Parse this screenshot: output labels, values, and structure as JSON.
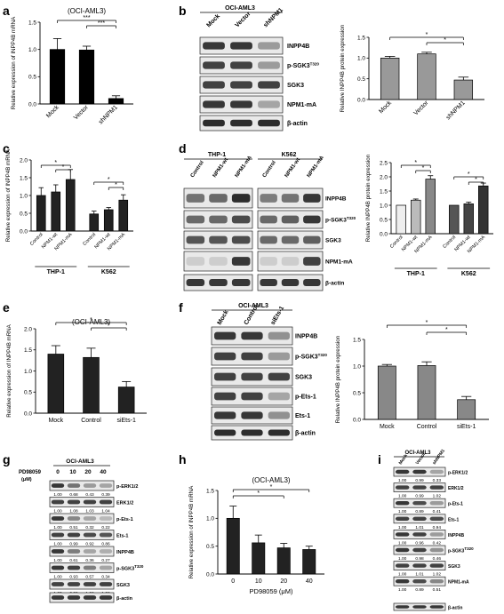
{
  "panels": {
    "a": {
      "letter": "a",
      "chart_data": {
        "type": "bar",
        "title": "(OCI-AML3)",
        "ylabel": "Relative expression of INPP4B mRNA",
        "categories": [
          "Mock",
          "Vector",
          "shNPM1"
        ],
        "values": [
          1.0,
          0.99,
          0.1
        ],
        "errors": [
          0.2,
          0.07,
          0.05
        ],
        "ylim": [
          0,
          1.5
        ],
        "yticks": [
          "0.0",
          "0.5",
          "1.0",
          "1.5"
        ],
        "sig": [
          "***",
          "***"
        ],
        "color": "#000000"
      }
    },
    "b": {
      "letter": "b",
      "cell_line": "OCI-AML3",
      "lanes": [
        "Mock",
        "Vector",
        "shNPM1"
      ],
      "proteins": [
        "INPP4B",
        "p-SGK3",
        "SGK3",
        "NPM1-mA",
        "β-actin"
      ],
      "phospho_site": "T320",
      "chart_data": {
        "type": "bar",
        "ylabel": "Relative INPP4B protein expression",
        "categories": [
          "Mock",
          "Vector",
          "shNPM1"
        ],
        "values": [
          1.0,
          1.1,
          0.47
        ],
        "errors": [
          0.04,
          0.04,
          0.07
        ],
        "ylim": [
          0,
          1.5
        ],
        "yticks": [
          "0.0",
          "0.5",
          "1.0",
          "1.5"
        ],
        "sig": [
          "*",
          "*"
        ],
        "color": "#999999"
      }
    },
    "c": {
      "letter": "c",
      "chart_data": {
        "type": "bar",
        "ylabel": "Relative expression of INPP4B mRNA",
        "categories": [
          "Control",
          "NPM1-wt",
          "NPM1-mA",
          "Control",
          "NPM1-wt",
          "NPM1-mA"
        ],
        "groups": [
          "THP-1",
          "K562"
        ],
        "values": [
          1.0,
          1.1,
          1.45,
          0.48,
          0.6,
          0.87
        ],
        "errors": [
          0.22,
          0.2,
          0.28,
          0.08,
          0.06,
          0.15
        ],
        "ylim": [
          0,
          2.0
        ],
        "yticks": [
          "0.0",
          "0.5",
          "1.0",
          "1.5",
          "2.0"
        ],
        "sig": [
          "*",
          "*",
          "*",
          "*"
        ],
        "color": "#222222"
      }
    },
    "d": {
      "letter": "d",
      "cell_lines": [
        "THP-1",
        "K562"
      ],
      "lanes": [
        "Control",
        "NPM1-wt",
        "NPM1-mA"
      ],
      "proteins": [
        "INPP4B",
        "p-SGK3",
        "SGK3",
        "NPM1-mA",
        "β-actin"
      ],
      "phospho_site": "T320",
      "chart_data": {
        "type": "bar",
        "ylabel": "Relative INPP4B protein expression",
        "categories": [
          "Control",
          "NPM1-wt",
          "NPM1-mA",
          "Control",
          "NPM1-wt",
          "NPM1-mA"
        ],
        "groups": [
          "THP-1",
          "K562"
        ],
        "values": [
          1.0,
          1.18,
          1.92,
          1.0,
          1.05,
          1.68
        ],
        "errors": [
          0.0,
          0.04,
          0.12,
          0.0,
          0.06,
          0.1
        ],
        "ylim": [
          0,
          2.5
        ],
        "yticks": [
          "0.0",
          "0.5",
          "1.0",
          "1.5",
          "2.0",
          "2.5"
        ],
        "sig": [
          "*",
          "*",
          "*",
          "*"
        ],
        "colors": [
          "#eeeeee",
          "#bbbbbb",
          "#888888",
          "#555555",
          "#444444",
          "#333333"
        ]
      }
    },
    "e": {
      "letter": "e",
      "chart_data": {
        "type": "bar",
        "title": "(OCI-AML3)",
        "ylabel": "Relative expression of INPP4B mRNA",
        "categories": [
          "Mock",
          "Control",
          "siEts-1"
        ],
        "values": [
          1.4,
          1.32,
          0.62
        ],
        "errors": [
          0.2,
          0.22,
          0.13
        ],
        "ylim": [
          0,
          2.0
        ],
        "yticks": [
          "0.0",
          "0.5",
          "1.0",
          "1.5",
          "2.0"
        ],
        "sig": [
          "*",
          "*"
        ],
        "color": "#222222"
      }
    },
    "f": {
      "letter": "f",
      "cell_line": "OCI-AML3",
      "lanes": [
        "Mock",
        "Control",
        "siEts-1"
      ],
      "proteins": [
        "INPP4B",
        "p-SGK3",
        "SGK3",
        "p-Ets-1",
        "Ets-1",
        "β-actin"
      ],
      "phospho_site": "T320",
      "chart_data": {
        "type": "bar",
        "ylabel": "Relative INPP4B protein expression",
        "categories": [
          "Mock",
          "Control",
          "siEts-1"
        ],
        "values": [
          1.0,
          1.01,
          0.37
        ],
        "errors": [
          0.03,
          0.07,
          0.06
        ],
        "ylim": [
          0,
          1.5
        ],
        "yticks": [
          "0.0",
          "0.5",
          "1.0",
          "1.5"
        ],
        "sig": [
          "*",
          "*"
        ],
        "color": "#888888"
      }
    },
    "g": {
      "letter": "g",
      "cell_line": "OCI-AML3",
      "treatment": "PD98059",
      "unit": "(μM)",
      "doses": [
        "0",
        "10",
        "20",
        "40"
      ],
      "rows": [
        {
          "protein": "p-ERK1/2",
          "q": [
            "1.00",
            "0.68",
            "0.43",
            "0.39"
          ]
        },
        {
          "protein": "ERK1/2",
          "q": [
            "1.00",
            "1.08",
            "1.03",
            "1.04"
          ]
        },
        {
          "protein": "p-Ets-1",
          "q": [
            "1.00",
            "0.51",
            "0.32",
            "0.22"
          ]
        },
        {
          "protein": "Ets-1",
          "q": [
            "1.00",
            "0.99",
            "0.92",
            "0.86"
          ]
        },
        {
          "protein": "INPP4B",
          "q": [
            "1.00",
            "0.61",
            "0.36",
            "0.27"
          ]
        },
        {
          "protein": "p-SGK3",
          "q": [
            "1.00",
            "0.93",
            "0.57",
            "0.34"
          ]
        },
        {
          "protein": "SGK3",
          "q": [
            "1.00",
            "0.99",
            "1.02",
            "1.02"
          ]
        },
        {
          "protein": "β-actin",
          "q": []
        }
      ],
      "phospho_site": "T320"
    },
    "h": {
      "letter": "h",
      "chart_data": {
        "type": "bar",
        "title": "(OCI-AML3)",
        "ylabel": "Relative expression of INPP4B mRNA",
        "xlabel": "PD98059 (μM)",
        "categories": [
          "0",
          "10",
          "20",
          "40"
        ],
        "values": [
          1.0,
          0.56,
          0.47,
          0.44
        ],
        "errors": [
          0.22,
          0.14,
          0.08,
          0.06
        ],
        "ylim": [
          0,
          1.5
        ],
        "yticks": [
          "0.0",
          "0.5",
          "1.0",
          "1.5"
        ],
        "sig": [
          "*",
          "*"
        ],
        "color": "#222222"
      }
    },
    "i": {
      "letter": "i",
      "cell_line": "OCI-AML3",
      "lanes": [
        "Mock",
        "Vector",
        "shNPM1"
      ],
      "rows": [
        {
          "protein": "p-ERK1/2",
          "q": [
            "1.00",
            "0.99",
            "0.33"
          ]
        },
        {
          "protein": "ERK1/2",
          "q": [
            "1.00",
            "0.99",
            "1.02"
          ]
        },
        {
          "protein": "p-Ets-1",
          "q": [
            "1.00",
            "0.89",
            "0.41"
          ]
        },
        {
          "protein": "Ets-1",
          "q": [
            "1.00",
            "1.01",
            "0.94"
          ]
        },
        {
          "protein": "INPP4B",
          "q": [
            "1.00",
            "0.96",
            "0.42"
          ]
        },
        {
          "protein": "p-SGK3",
          "q": [
            "1.00",
            "0.98",
            "0.46"
          ]
        },
        {
          "protein": "SGK3",
          "q": [
            "1.00",
            "1.01",
            "1.02"
          ]
        },
        {
          "protein": "NPM1-mA",
          "q": [
            "1.00",
            "0.89",
            "0.51"
          ]
        },
        {
          "protein": "β-actin",
          "q": []
        }
      ],
      "phospho_site": "T320"
    }
  }
}
